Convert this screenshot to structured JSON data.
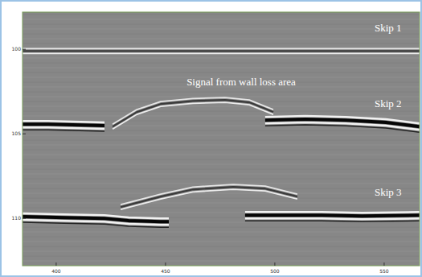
{
  "chart_data": {
    "type": "scan",
    "xlim": [
      384.6,
      566.2
    ],
    "ylim": [
      97.8,
      112.8
    ],
    "xticks": [
      400,
      450,
      500,
      550
    ],
    "yticks": [
      100,
      105,
      110
    ],
    "annotations": [
      {
        "text": "Signal from wall loss area"
      }
    ],
    "series": [
      {
        "name": "Skip 1",
        "x": [
          384.6,
          420,
          460,
          500,
          540,
          566.2
        ],
        "values": [
          100.1,
          100.1,
          100.1,
          100.1,
          100.1,
          100.1
        ]
      },
      {
        "name": "Skip 2",
        "x": [
          384.6,
          396.4,
          411.1,
          422.1,
          458.9,
          495.6,
          514.0,
          532.4,
          550.8,
          566.2
        ],
        "values": [
          104.43,
          104.43,
          104.48,
          104.52,
          null,
          104.19,
          104.14,
          104.19,
          104.33,
          104.57
        ]
      },
      {
        "x": [
          425.8,
          436.9,
          447.8,
          462.5,
          477.2,
          488.3,
          499.3
        ],
        "values": [
          104.57,
          103.71,
          103.24,
          103.05,
          103.0,
          103.14,
          103.71
        ]
      },
      {
        "name": "Skip 3",
        "x": [
          384.6,
          403.7,
          422.1,
          433.1,
          447.8,
          451.5,
          470.0,
          486.4,
          503.0,
          521.4,
          539.8,
          566.2
        ],
        "values": [
          109.9,
          109.95,
          110.0,
          110.14,
          110.19,
          110.19,
          null,
          109.81,
          109.81,
          109.81,
          109.86,
          109.81
        ]
      },
      {
        "x": [
          429.5,
          447.8,
          462.5,
          480.9,
          495.6,
          510.3
        ],
        "values": [
          109.33,
          108.71,
          108.29,
          108.14,
          108.24,
          108.71
        ]
      }
    ]
  }
}
